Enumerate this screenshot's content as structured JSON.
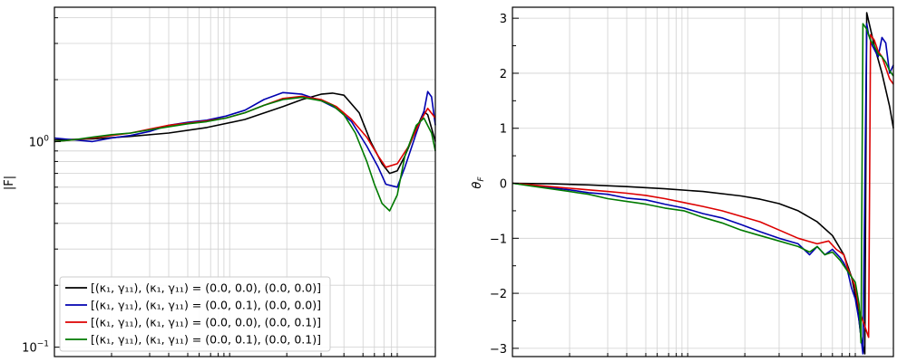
{
  "chart_data": [
    {
      "type": "line",
      "ylabel": "|F|",
      "yscale": "log",
      "ylim": [
        0.09,
        4.5
      ],
      "xlim": [
        0,
        1
      ],
      "yticks": [
        {
          "value": 0.1,
          "label": "10",
          "exp": "−1"
        },
        {
          "value": 1.0,
          "label": "10",
          "exp": "0"
        }
      ],
      "grid": true,
      "legend": {
        "location": "lower-left",
        "entries": [
          "[(κ₁, γ₁₁), (κ₁, γ₁₁) = (0.0, 0.0), (0.0, 0.0)]",
          "[(κ₁, γ₁₁), (κ₁, γ₁₁) = (0.0, 0.1), (0.0, 0.0)]",
          "[(κ₁, γ₁₁), (κ₁, γ₁₁) = (0.0, 0.0), (0.0, 0.1)]",
          "[(κ₁, γ₁₁), (κ₁, γ₁₁) = (0.0, 0.1), (0.0, 0.1)]"
        ]
      },
      "series": [
        {
          "name": "[(κ₁, γ₁₁), (κ₁, γ₁₁) = (0.0, 0.0), (0.0, 0.0)]",
          "color": "#000000",
          "x": [
            0,
            0.1,
            0.2,
            0.3,
            0.4,
            0.5,
            0.6,
            0.65,
            0.7,
            0.73,
            0.76,
            0.8,
            0.83,
            0.86,
            0.88,
            0.9,
            0.92,
            0.95,
            0.97,
            0.98,
            1.0
          ],
          "y": [
            1.02,
            1.03,
            1.06,
            1.1,
            1.17,
            1.28,
            1.48,
            1.6,
            1.7,
            1.72,
            1.68,
            1.38,
            1.0,
            0.78,
            0.7,
            0.72,
            0.85,
            1.15,
            1.4,
            1.35,
            1.0
          ]
        },
        {
          "name": "[(κ₁, γ₁₁), (κ₁, γ₁₁) = (0.0, 0.1), (0.0, 0.0)]",
          "color": "#0000b0",
          "x": [
            0,
            0.05,
            0.1,
            0.15,
            0.2,
            0.25,
            0.3,
            0.35,
            0.4,
            0.45,
            0.5,
            0.55,
            0.6,
            0.65,
            0.7,
            0.74,
            0.78,
            0.82,
            0.85,
            0.87,
            0.9,
            0.92,
            0.95,
            0.97,
            0.98,
            0.99,
            1.0
          ],
          "y": [
            1.04,
            1.02,
            1.0,
            1.04,
            1.07,
            1.12,
            1.2,
            1.24,
            1.27,
            1.33,
            1.42,
            1.6,
            1.73,
            1.7,
            1.58,
            1.45,
            1.25,
            0.95,
            0.75,
            0.62,
            0.6,
            0.75,
            1.1,
            1.4,
            1.75,
            1.65,
            1.2
          ]
        },
        {
          "name": "[(κ₁, γ₁₁), (κ₁, γ₁₁) = (0.0, 0.0), (0.0, 0.1)]",
          "color": "#dd0000",
          "x": [
            0,
            0.05,
            0.1,
            0.15,
            0.2,
            0.25,
            0.3,
            0.35,
            0.4,
            0.45,
            0.5,
            0.55,
            0.6,
            0.65,
            0.7,
            0.74,
            0.78,
            0.82,
            0.85,
            0.87,
            0.9,
            0.93,
            0.96,
            0.98,
            1.0
          ],
          "y": [
            1.0,
            1.02,
            1.04,
            1.07,
            1.1,
            1.15,
            1.2,
            1.23,
            1.26,
            1.3,
            1.38,
            1.5,
            1.62,
            1.66,
            1.6,
            1.48,
            1.28,
            1.05,
            0.85,
            0.75,
            0.78,
            0.95,
            1.25,
            1.45,
            1.3
          ]
        },
        {
          "name": "[(κ₁, γ₁₁), (κ₁, γ₁₁) = (0.0, 0.1), (0.0, 0.1)]",
          "color": "#007a00",
          "x": [
            0,
            0.05,
            0.1,
            0.15,
            0.2,
            0.25,
            0.3,
            0.35,
            0.4,
            0.45,
            0.5,
            0.55,
            0.6,
            0.65,
            0.7,
            0.73,
            0.76,
            0.79,
            0.82,
            0.84,
            0.86,
            0.88,
            0.9,
            0.92,
            0.95,
            0.97,
            0.99,
            1.0
          ],
          "y": [
            1.0,
            1.02,
            1.05,
            1.08,
            1.1,
            1.14,
            1.18,
            1.22,
            1.25,
            1.3,
            1.38,
            1.5,
            1.6,
            1.64,
            1.58,
            1.5,
            1.35,
            1.1,
            0.8,
            0.62,
            0.5,
            0.46,
            0.55,
            0.85,
            1.2,
            1.3,
            1.1,
            0.9
          ]
        }
      ]
    },
    {
      "type": "line",
      "ylabel": "θF",
      "ylim": [
        -3.15,
        3.2
      ],
      "xlim": [
        0,
        1
      ],
      "yticks": [
        -3,
        -2,
        -1,
        0,
        1,
        2,
        3
      ],
      "grid": true,
      "series": [
        {
          "color": "#000000",
          "x": [
            0,
            0.1,
            0.2,
            0.3,
            0.4,
            0.5,
            0.6,
            0.65,
            0.7,
            0.75,
            0.8,
            0.84,
            0.87,
            0.89,
            0.905,
            0.915,
            0.925,
            0.93,
            0.95,
            0.97,
            0.99,
            1.0
          ],
          "y": [
            0.0,
            -0.01,
            -0.03,
            -0.06,
            -0.1,
            -0.15,
            -0.23,
            -0.29,
            -0.37,
            -0.5,
            -0.7,
            -0.95,
            -1.3,
            -1.7,
            -2.2,
            -2.8,
            -3.1,
            3.1,
            2.5,
            2.0,
            1.4,
            1.0
          ]
        },
        {
          "color": "#0000b0",
          "x": [
            0,
            0.05,
            0.1,
            0.15,
            0.2,
            0.25,
            0.3,
            0.35,
            0.4,
            0.45,
            0.5,
            0.55,
            0.6,
            0.65,
            0.7,
            0.75,
            0.78,
            0.8,
            0.82,
            0.84,
            0.86,
            0.87,
            0.88,
            0.89,
            0.9,
            0.91,
            0.92,
            0.93,
            0.935,
            0.945,
            0.96,
            0.97,
            0.98,
            0.99,
            1.0
          ],
          "y": [
            0.0,
            -0.04,
            -0.08,
            -0.12,
            -0.17,
            -0.2,
            -0.27,
            -0.3,
            -0.38,
            -0.45,
            -0.55,
            -0.63,
            -0.75,
            -0.88,
            -1.0,
            -1.1,
            -1.3,
            -1.15,
            -1.3,
            -1.2,
            -1.35,
            -1.45,
            -1.6,
            -1.9,
            -2.1,
            -2.5,
            -3.1,
            2.9,
            2.7,
            2.5,
            2.3,
            2.65,
            2.55,
            2.0,
            2.15
          ]
        },
        {
          "color": "#dd0000",
          "x": [
            0,
            0.05,
            0.1,
            0.15,
            0.2,
            0.25,
            0.3,
            0.35,
            0.4,
            0.45,
            0.5,
            0.55,
            0.6,
            0.65,
            0.7,
            0.75,
            0.8,
            0.83,
            0.85,
            0.87,
            0.88,
            0.89,
            0.9,
            0.91,
            0.92,
            0.935,
            0.94,
            0.95,
            0.96,
            0.97,
            0.98,
            0.99,
            1.0
          ],
          "y": [
            0.0,
            -0.03,
            -0.06,
            -0.09,
            -0.12,
            -0.15,
            -0.18,
            -0.22,
            -0.28,
            -0.35,
            -0.42,
            -0.5,
            -0.6,
            -0.7,
            -0.85,
            -1.0,
            -1.1,
            -1.05,
            -1.2,
            -1.3,
            -1.55,
            -1.7,
            -1.9,
            -2.3,
            -2.5,
            -2.8,
            2.7,
            2.6,
            2.4,
            2.3,
            2.1,
            1.9,
            1.8
          ]
        },
        {
          "color": "#007a00",
          "x": [
            0,
            0.05,
            0.1,
            0.15,
            0.2,
            0.25,
            0.3,
            0.35,
            0.4,
            0.45,
            0.5,
            0.55,
            0.6,
            0.65,
            0.7,
            0.75,
            0.78,
            0.8,
            0.82,
            0.84,
            0.86,
            0.87,
            0.88,
            0.89,
            0.9,
            0.91,
            0.915,
            0.92,
            0.93,
            0.94,
            0.95,
            0.96,
            0.97,
            0.98,
            0.99,
            1.0
          ],
          "y": [
            0.0,
            -0.05,
            -0.1,
            -0.15,
            -0.2,
            -0.28,
            -0.33,
            -0.38,
            -0.45,
            -0.5,
            -0.62,
            -0.72,
            -0.85,
            -0.95,
            -1.05,
            -1.15,
            -1.25,
            -1.15,
            -1.3,
            -1.25,
            -1.4,
            -1.5,
            -1.6,
            -1.7,
            -1.8,
            -2.2,
            -2.9,
            2.9,
            2.8,
            2.6,
            2.5,
            2.35,
            2.3,
            2.2,
            2.05,
            1.95
          ]
        }
      ]
    }
  ]
}
